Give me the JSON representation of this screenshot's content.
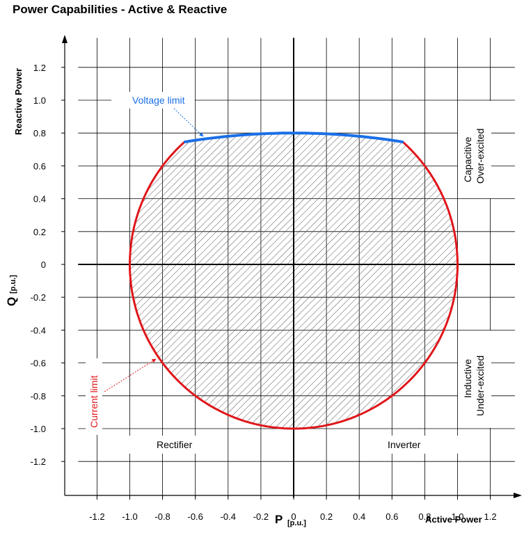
{
  "chart_data": {
    "type": "area",
    "title": "Power Capabilities - Active & Reactive",
    "xlabel": "P",
    "xlabel_unit": "[p.u.]",
    "xlabel_secondary": "Active Power",
    "ylabel": "Q",
    "ylabel_unit": "[p.u.]",
    "ylabel_secondary": "Reactive Power",
    "xlim": [
      -1.4,
      1.35
    ],
    "ylim": [
      -1.42,
      1.38
    ],
    "x_ticks": [
      -1.2,
      -1.0,
      -0.8,
      -0.6,
      -0.4,
      -0.2,
      0,
      0.2,
      0.4,
      0.6,
      0.8,
      1.0,
      1.2
    ],
    "x_tick_labels": [
      "-1.2",
      "-1.0",
      "-0.8",
      "-0.6",
      "-0.4",
      "-0.2",
      "0",
      "0.2",
      "0.4",
      "0.6",
      "0.8",
      "1.0",
      "1.2"
    ],
    "y_ticks": [
      1.2,
      1.0,
      0.8,
      0.6,
      0.4,
      0.2,
      0,
      -0.2,
      -0.4,
      -0.6,
      -0.8,
      -1.0,
      -1.2
    ],
    "y_tick_labels": [
      "1.2",
      "1.0",
      "0.8",
      "0.6",
      "0.4",
      "0.2",
      "0",
      "-0.2",
      "-0.4",
      "-0.6",
      "-0.8",
      "-1.0",
      "-1.2"
    ],
    "grid": true,
    "current_limit_radius": 1.0,
    "voltage_limit": {
      "points": [
        [
          -0.67,
          0.745
        ],
        [
          -0.4,
          0.785
        ],
        [
          0,
          0.8
        ],
        [
          0.4,
          0.785
        ],
        [
          0.67,
          0.745
        ]
      ],
      "color": "#1a6fe6"
    },
    "current_limit_color": "#e0161b",
    "annotations": {
      "voltage_limit": "Voltage limit",
      "current_limit": "Current limit",
      "rectifier": "Rectifier",
      "inverter": "Inverter",
      "capacitive": "Capacitive",
      "over_excited": "Over-excited",
      "inductive": "Inductive",
      "under_excited": "Under-excited"
    }
  }
}
